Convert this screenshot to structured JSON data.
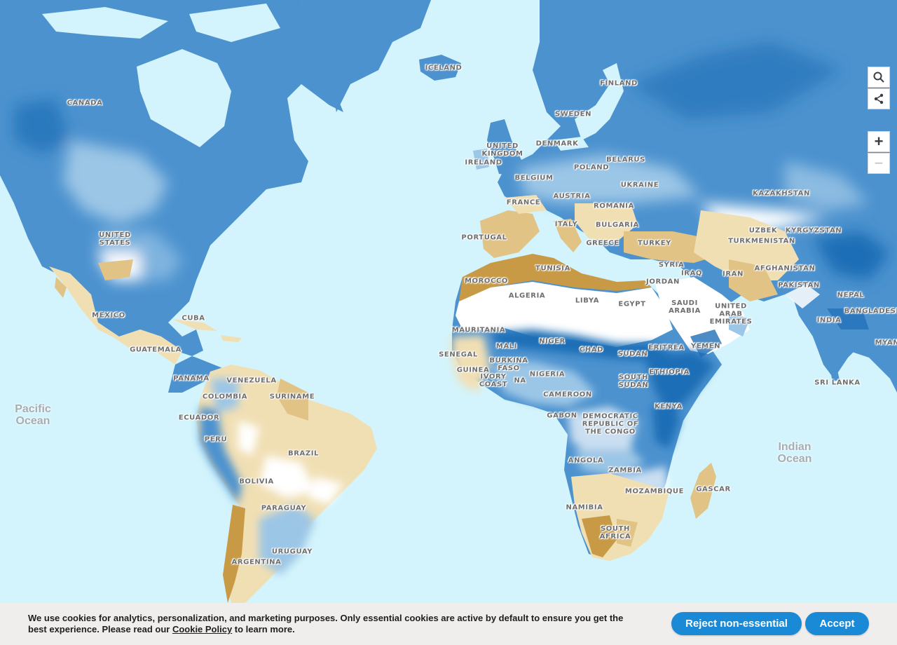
{
  "map": {
    "colors": {
      "ocean": "#d3f4fc",
      "wet_dark": "#1f6eb6",
      "wet_mid": "#4c92cf",
      "wet_light": "#9cc6e6",
      "neutral": "#ffffff",
      "dry_light": "#f1dfb4",
      "dry_mid": "#e2c386",
      "dry_dark": "#c99a45"
    },
    "country_labels": [
      "CANADA",
      "UNITED\nSTATES",
      "MEXICO",
      "CUBA",
      "GUATEMALA",
      "PANAMA",
      "VENEZUELA",
      "COLOMBIA",
      "SURINAME",
      "ECUADOR",
      "PERU",
      "BRAZIL",
      "BOLIVIA",
      "PARAGUAY",
      "URUGUAY",
      "ARGENTINA",
      "ICELAND",
      "FINLAND",
      "SWEDEN",
      "DENMARK",
      "UNITED\nKINGDOM",
      "IRELAND",
      "BELGIUM",
      "POLAND",
      "BELARUS",
      "UKRAINE",
      "FRANCE",
      "AUSTRIA",
      "ROMANIA",
      "PORTUGAL",
      "ITALY",
      "BULGARIA",
      "GREECE",
      "TURKEY",
      "KAZAKHSTAN",
      "KYRGYZSTAN",
      "TURKMENISTAN",
      "SYRIA",
      "IRAQ",
      "IRAN",
      "AFGHANISTAN",
      "PAKISTAN",
      "NEPAL",
      "BANGLADESH",
      "INDIA",
      "SRI LANKA",
      "MYAN",
      "TUNISIA",
      "MOROCCO",
      "ALGERIA",
      "LIBYA",
      "EGYPT",
      "JORDAN",
      "SAUDI\nARABIA",
      "UNITED\nARAB\nEMIRATES",
      "YEMEN",
      "MAURITANIA",
      "MALI",
      "NIGER",
      "CHAD",
      "ERITREA",
      "SUDAN",
      "SENEGAL",
      "BURKINA\nFASO",
      "GUINEA",
      "IVORY\nCOAST",
      "NA",
      "NIGERIA",
      "ETHIOPIA",
      "SOUTH\nSUDAN",
      "CAMEROON",
      "KENYA",
      "GABON",
      "DEMOCRATIC\nREPUBLIC OF\nTHE CONGO",
      "ANGOLA",
      "ZAMBIA",
      "MOZAMBIQUE",
      "GASCAR",
      "NAMIBIA",
      "SOUTH\nAFRICA",
      "UZBEK"
    ],
    "ocean_labels": [
      "Pacific\nOcean",
      "Indian\nOcean"
    ]
  },
  "controls": {
    "search": "search-icon",
    "share": "share-icon",
    "zoom_in": "+",
    "zoom_out": "−"
  },
  "cookie_banner": {
    "text_before": "We use cookies for analytics, personalization, and marketing purposes. Only essential cookies are active by default to ensure you get the best experience. Please read our ",
    "link_label": "Cookie Policy",
    "text_after": " to learn more.",
    "reject_label": "Reject non-essential",
    "accept_label": "Accept",
    "button_color": "#1a8ad6"
  }
}
